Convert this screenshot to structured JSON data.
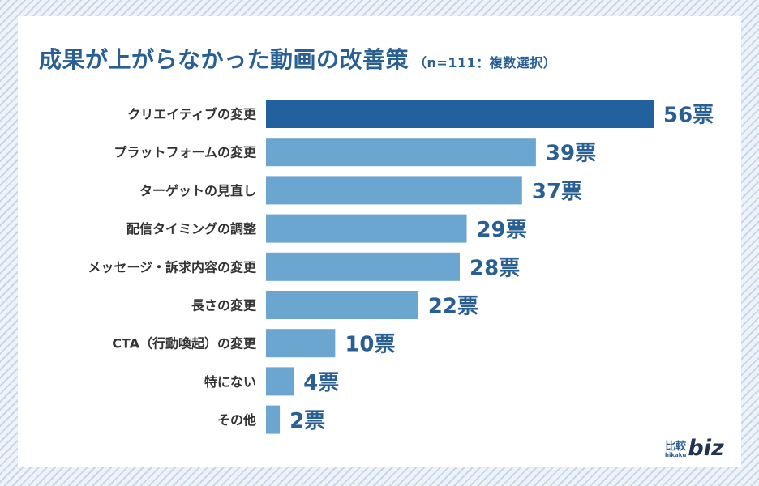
{
  "title": "成果が上がらなかった動画の改善策",
  "subtitle": "（n=111：複数選択）",
  "chart_data": {
    "type": "bar",
    "orientation": "horizontal",
    "title": "成果が上がらなかった動画の改善策（n=111：複数選択）",
    "categories": [
      "クリエイティブの変更",
      "プラットフォームの変更",
      "ターゲットの見直し",
      "配信タイミングの調整",
      "メッセージ・訴求内容の変更",
      "長さの変更",
      "CTA（行動喚起）の変更",
      "特にない",
      "その他"
    ],
    "values": [
      56,
      39,
      37,
      29,
      28,
      22,
      10,
      4,
      2
    ],
    "value_labels": [
      "56票",
      "39票",
      "37票",
      "29票",
      "28票",
      "22票",
      "10票",
      "4票",
      "2票"
    ],
    "unit": "票",
    "xlim": [
      0,
      56
    ],
    "highlight_color": "#23619e",
    "bar_color": "#6aa6d0",
    "label_color": "#2a5f94"
  },
  "logo": {
    "jp": "比較",
    "romaji": "hikaku",
    "biz": "biz"
  }
}
